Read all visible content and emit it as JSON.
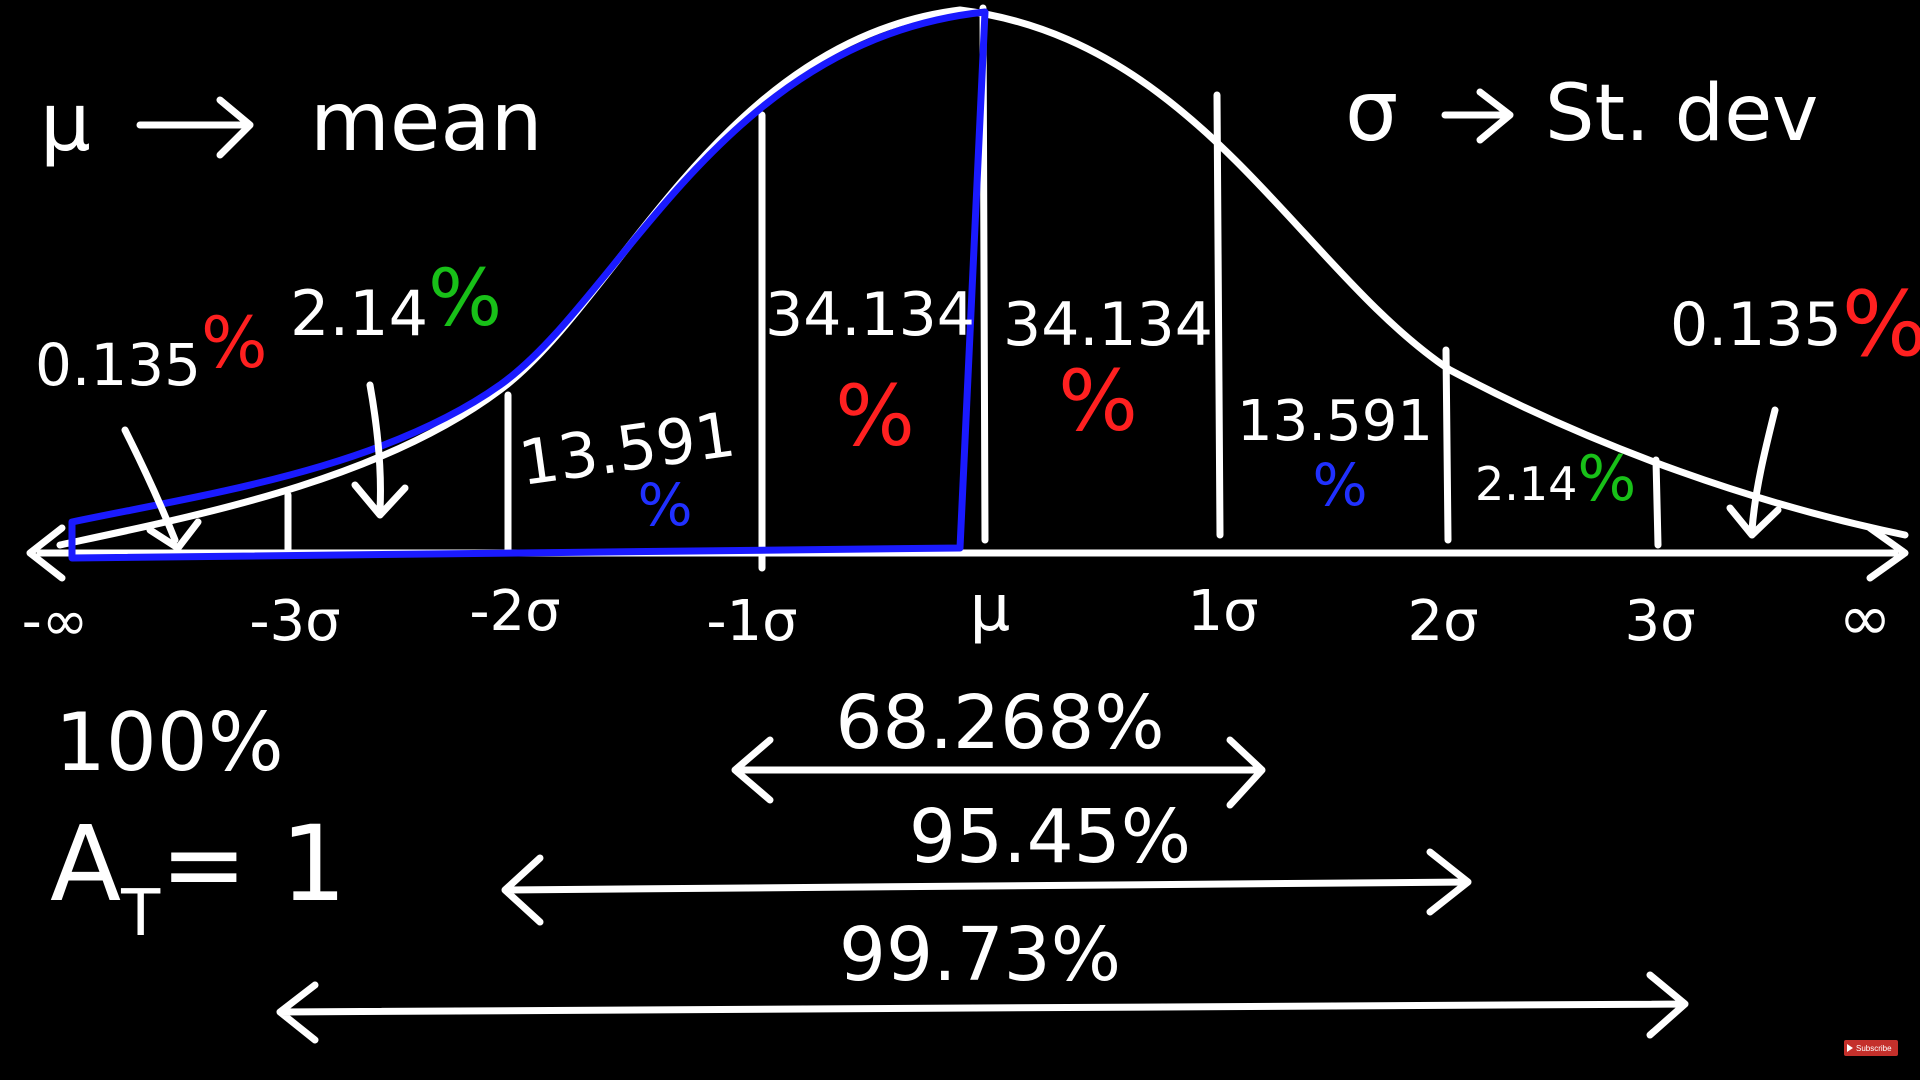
{
  "legend": {
    "mu_symbol": "μ",
    "mu_meaning": "mean",
    "sigma_symbol": "σ",
    "sigma_meaning": "St. dev"
  },
  "axis": {
    "ticks": [
      "-∞",
      "-3σ",
      "-2σ",
      "-1σ",
      "μ",
      "1σ",
      "2σ",
      "3σ",
      "∞"
    ]
  },
  "regions": [
    {
      "value": "0.135",
      "unit": "%",
      "unit_color": "#ff2020"
    },
    {
      "value": "2.14",
      "unit": "%",
      "unit_color": "#18c018"
    },
    {
      "value": "13.591",
      "unit": "%",
      "unit_color": "#2030ff"
    },
    {
      "value": "34.134",
      "unit": "%",
      "unit_color": "#ff2020"
    },
    {
      "value": "34.134",
      "unit": "%",
      "unit_color": "#ff2020"
    },
    {
      "value": "13.591",
      "unit": "%",
      "unit_color": "#2030ff"
    },
    {
      "value": "2.14",
      "unit": "%",
      "unit_color": "#18c018"
    },
    {
      "value": "0.135",
      "unit": "%",
      "unit_color": "#ff2020"
    }
  ],
  "totals": {
    "total_percent": "100%",
    "area_label": "A",
    "area_subscript": "T",
    "area_value": "= 1"
  },
  "ranges": [
    {
      "label": "68.268%"
    },
    {
      "label": "95.45%"
    },
    {
      "label": "99.73%"
    }
  ],
  "colors": {
    "background": "#000000",
    "chalk": "#ffffff",
    "highlight_blue": "#1a1aff",
    "red": "#ff2020",
    "green": "#18c018",
    "blue": "#2030ff"
  },
  "badge": {
    "icon": "play-icon",
    "label": "Subscribe"
  }
}
